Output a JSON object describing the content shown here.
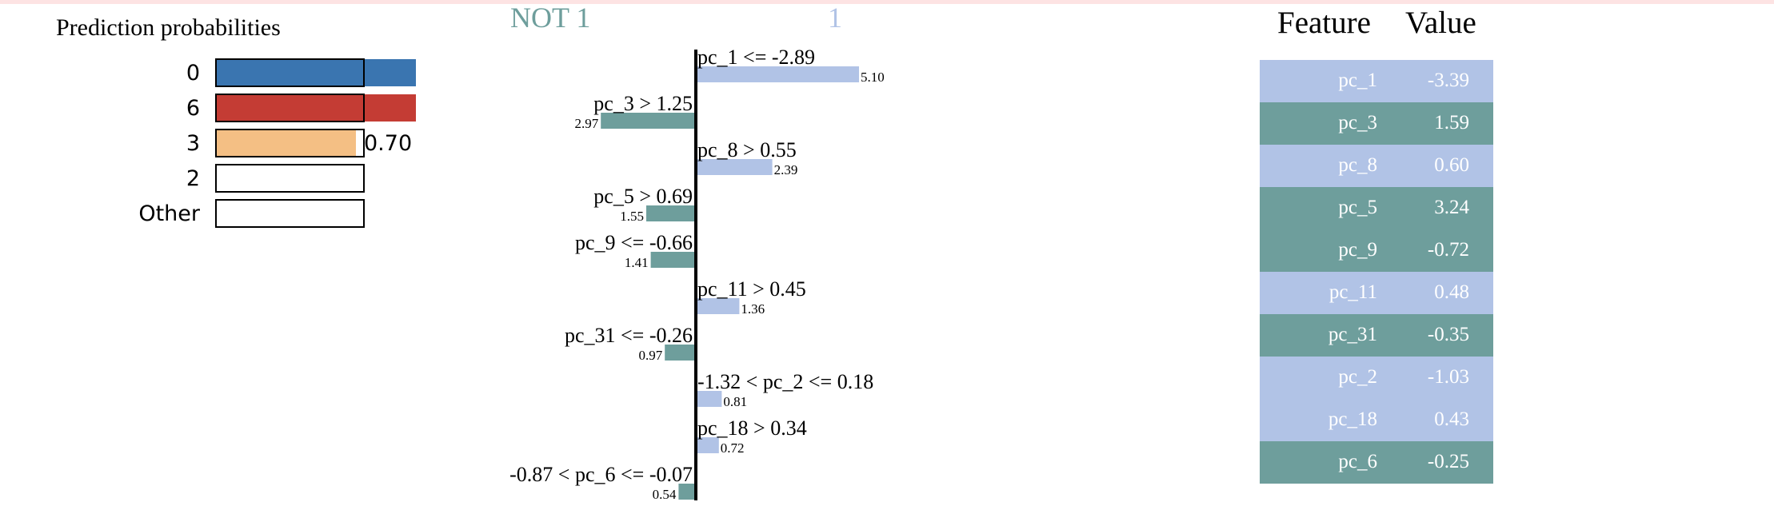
{
  "prediction_panel": {
    "title": "Prediction probabilities",
    "bars": [
      {
        "label": "0",
        "value": 1.0,
        "value_label": "",
        "color": "#3a75b0"
      },
      {
        "label": "6",
        "value": 1.0,
        "value_label": "",
        "color": "#c43c34"
      },
      {
        "label": "3",
        "value": 0.7,
        "value_label": "0.70",
        "color": "#f4bf84"
      },
      {
        "label": "2",
        "value": 0.0,
        "value_label": "",
        "color": "#cccccc"
      },
      {
        "label": "Other",
        "value": 0.0,
        "value_label": "",
        "color": "#cccccc"
      }
    ]
  },
  "explanation_panel": {
    "neg_class_label": "NOT 1",
    "pos_class_label": "1",
    "neg_color": "#6e9e9c",
    "pos_color": "#b1c3e6"
  },
  "chart_data": {
    "type": "bar",
    "orientation": "horizontal",
    "categories": [
      "pc_1 <= -2.89",
      "pc_3 > 1.25",
      "pc_8 > 0.55",
      "pc_5 > 0.69",
      "pc_9 <= -0.66",
      "pc_11 > 0.45",
      "pc_31 <= -0.26",
      "-1.32 < pc_2 <= 0.18",
      "pc_18 > 0.34",
      "-0.87 < pc_6 <= -0.07"
    ],
    "values": [
      5.1,
      -2.97,
      2.39,
      -1.55,
      -1.41,
      1.36,
      -0.97,
      0.81,
      0.72,
      -0.54
    ],
    "value_labels": [
      "5.10",
      "2.97",
      "2.39",
      "1.55",
      "1.41",
      "1.36",
      "0.97",
      "0.81",
      "0.72",
      "0.54"
    ]
  },
  "feature_table": {
    "headers": [
      "Feature",
      "Value"
    ],
    "rows": [
      {
        "feature": "pc_1",
        "value": "-3.39",
        "side": "pos"
      },
      {
        "feature": "pc_3",
        "value": "1.59",
        "side": "neg"
      },
      {
        "feature": "pc_8",
        "value": "0.60",
        "side": "pos"
      },
      {
        "feature": "pc_5",
        "value": "3.24",
        "side": "neg"
      },
      {
        "feature": "pc_9",
        "value": "-0.72",
        "side": "neg"
      },
      {
        "feature": "pc_11",
        "value": "0.48",
        "side": "pos"
      },
      {
        "feature": "pc_31",
        "value": "-0.35",
        "side": "neg"
      },
      {
        "feature": "pc_2",
        "value": "-1.03",
        "side": "pos"
      },
      {
        "feature": "pc_18",
        "value": "0.43",
        "side": "pos"
      },
      {
        "feature": "pc_6",
        "value": "-0.25",
        "side": "neg"
      }
    ]
  }
}
